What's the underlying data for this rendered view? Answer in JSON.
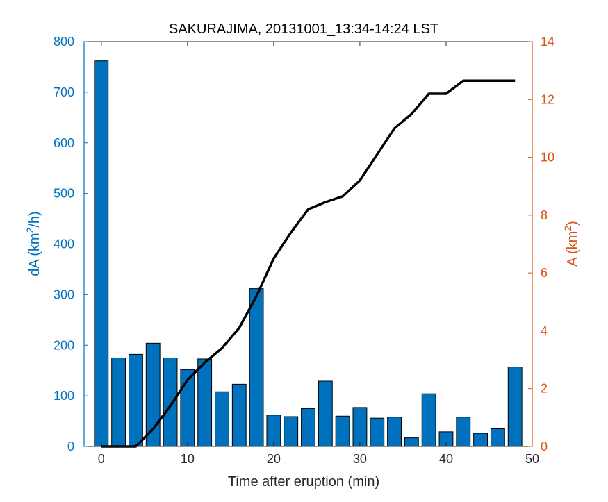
{
  "chart_data": {
    "type": "bar",
    "title": "SAKURAJIMA, 20131001_13:34-14:24 LST",
    "xlabel": "Time after eruption (min)",
    "ylabel_left": {
      "base": "dA (km",
      "sup": "2",
      "tail": "/h)"
    },
    "ylabel_right": {
      "base": "A (km",
      "sup": "2",
      "tail": ")"
    },
    "xlim": [
      -2,
      50
    ],
    "ylim_left": [
      0,
      800
    ],
    "ylim_right": [
      0,
      14
    ],
    "x_ticks": [
      0,
      10,
      20,
      30,
      40,
      50
    ],
    "y_left_ticks": [
      0,
      100,
      200,
      300,
      400,
      500,
      600,
      700,
      800
    ],
    "y_right_ticks": [
      0,
      2,
      4,
      6,
      8,
      10,
      12,
      14
    ],
    "colors": {
      "bars": "#0072BD",
      "line": "#000000",
      "left_axis": "#0072BD",
      "right_axis": "#D95319",
      "x_axis": "#262626"
    },
    "series": [
      {
        "axis": "left",
        "type": "bar",
        "x": [
          0,
          2,
          4,
          6,
          8,
          10,
          12,
          14,
          16,
          18,
          20,
          22,
          24,
          26,
          28,
          30,
          32,
          34,
          36,
          38,
          40,
          42,
          44,
          46,
          48
        ],
        "values": [
          762,
          175,
          182,
          204,
          175,
          152,
          173,
          108,
          123,
          312,
          62,
          59,
          75,
          129,
          60,
          77,
          56,
          58,
          17,
          104,
          29,
          58,
          26,
          35,
          157
        ]
      },
      {
        "axis": "right",
        "type": "line",
        "x": [
          0,
          2,
          4,
          6,
          8,
          10,
          12,
          14,
          16,
          18,
          20,
          22,
          24,
          26,
          28,
          30,
          32,
          34,
          36,
          38,
          40,
          42,
          44,
          46,
          48
        ],
        "values": [
          0,
          0,
          0,
          0.6,
          1.4,
          2.3,
          2.9,
          3.4,
          4.1,
          5.2,
          6.5,
          7.4,
          8.2,
          8.45,
          8.65,
          9.2,
          10.1,
          11.0,
          11.5,
          12.2,
          12.2,
          12.65,
          12.65,
          12.65,
          12.65
        ]
      }
    ]
  }
}
